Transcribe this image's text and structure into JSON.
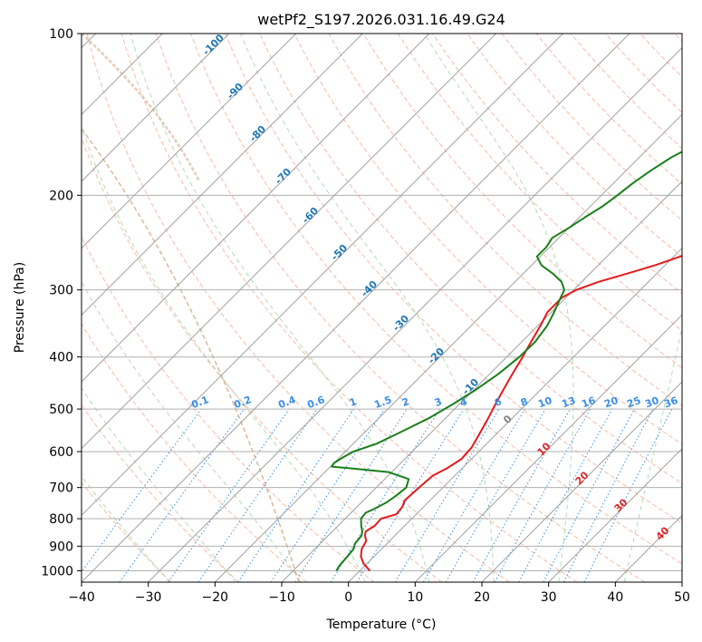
{
  "chart_data": {
    "type": "line",
    "title": "wetPf2_S197.2026.031.16.49.G24",
    "xlabel": "Temperature (°C)",
    "ylabel": "Pressure (hPa)",
    "xlim": [
      -40,
      50
    ],
    "ylim": [
      1050,
      100
    ],
    "x_ticks": [
      -40,
      -30,
      -20,
      -10,
      0,
      10,
      20,
      30,
      40,
      50
    ],
    "y_ticks": [
      100,
      200,
      300,
      400,
      500,
      600,
      700,
      800,
      900,
      1000
    ],
    "grid": true,
    "series": [
      {
        "name": "Temperature",
        "color": "#e41a1c",
        "points": [
          [
            1.5,
            1000
          ],
          [
            -0.5,
            970
          ],
          [
            -2.0,
            940
          ],
          [
            -3.0,
            910
          ],
          [
            -3.5,
            880
          ],
          [
            -4.5,
            860
          ],
          [
            -5.0,
            845
          ],
          [
            -4.5,
            825
          ],
          [
            -4.6,
            800
          ],
          [
            -3.0,
            785
          ],
          [
            -3.2,
            760
          ],
          [
            -3.8,
            740
          ],
          [
            -3.6,
            700
          ],
          [
            -3.3,
            665
          ],
          [
            -2.3,
            645
          ],
          [
            -1.5,
            620
          ],
          [
            -1.7,
            590
          ],
          [
            -2.6,
            555
          ],
          [
            -3.6,
            520
          ],
          [
            -4.6,
            490
          ],
          [
            -5.6,
            460
          ],
          [
            -6.6,
            430
          ],
          [
            -7.6,
            400
          ],
          [
            -8.6,
            375
          ],
          [
            -9.6,
            350
          ],
          [
            -10.6,
            330
          ],
          [
            -10.6,
            310
          ],
          [
            -9.6,
            300
          ],
          [
            -7.5,
            290
          ],
          [
            -4.5,
            280
          ],
          [
            -1.5,
            270
          ],
          [
            1.0,
            260
          ],
          [
            3.5,
            250
          ],
          [
            5.0,
            240
          ],
          [
            6.0,
            230
          ],
          [
            7.0,
            220
          ],
          [
            8.5,
            210
          ],
          [
            11.0,
            200
          ],
          [
            13.0,
            190
          ],
          [
            15.0,
            180
          ],
          [
            16.5,
            170
          ],
          [
            18.0,
            160
          ],
          [
            19.5,
            150
          ],
          [
            21.5,
            140
          ],
          [
            23.5,
            130
          ],
          [
            26.5,
            120
          ],
          [
            31.0,
            110
          ],
          [
            37.0,
            100
          ]
        ]
      },
      {
        "name": "Dewpoint",
        "color": "#1a7f1a",
        "points": [
          [
            -3.5,
            1000
          ],
          [
            -3.8,
            980
          ],
          [
            -4.0,
            940
          ],
          [
            -4.2,
            910
          ],
          [
            -4.8,
            890
          ],
          [
            -5.0,
            860
          ],
          [
            -5.5,
            845
          ],
          [
            -6.5,
            825
          ],
          [
            -7.6,
            800
          ],
          [
            -7.8,
            780
          ],
          [
            -7.0,
            765
          ],
          [
            -6.2,
            745
          ],
          [
            -5.8,
            725
          ],
          [
            -5.5,
            700
          ],
          [
            -6.4,
            675
          ],
          [
            -10.5,
            655
          ],
          [
            -16.5,
            645
          ],
          [
            -19.8,
            640
          ],
          [
            -20.0,
            630
          ],
          [
            -19.5,
            615
          ],
          [
            -18.8,
            600
          ],
          [
            -16.5,
            580
          ],
          [
            -14.5,
            550
          ],
          [
            -12.5,
            520
          ],
          [
            -11.0,
            490
          ],
          [
            -9.7,
            460
          ],
          [
            -8.7,
            430
          ],
          [
            -8.1,
            400
          ],
          [
            -8.0,
            375
          ],
          [
            -8.6,
            350
          ],
          [
            -9.6,
            330
          ],
          [
            -10.5,
            315
          ],
          [
            -11.4,
            300
          ],
          [
            -13.0,
            290
          ],
          [
            -15.5,
            280
          ],
          [
            -18.5,
            270
          ],
          [
            -20.5,
            260
          ],
          [
            -20.5,
            250
          ],
          [
            -21.0,
            240
          ],
          [
            -20.0,
            230
          ],
          [
            -19.2,
            220
          ],
          [
            -18.2,
            210
          ],
          [
            -17.6,
            200
          ],
          [
            -17.1,
            190
          ],
          [
            -16.3,
            180
          ],
          [
            -15.2,
            170
          ],
          [
            -13.2,
            160
          ],
          [
            -10.8,
            150
          ],
          [
            -8.2,
            140
          ],
          [
            -5.8,
            130
          ],
          [
            -3.5,
            120
          ],
          [
            -1.5,
            110
          ],
          [
            0.5,
            100
          ]
        ]
      }
    ],
    "dry_adiabat_labels": [
      "-100",
      "-90",
      "-80",
      "-70",
      "-60",
      "-50",
      "-40",
      "-30",
      "-20",
      "-10"
    ],
    "dry_adiabat_label_color": "#1f77b4",
    "mixing_ratio_labels": [
      "0.1",
      "0.2",
      "0.4",
      "0.6",
      "1",
      "1.5",
      "2",
      "3",
      "4",
      "6",
      "8",
      "10",
      "13",
      "16",
      "20",
      "25",
      "30",
      "36"
    ],
    "mixing_ratio_label_color": "#3a8ee6",
    "moist_adiabat_labels": [
      "0",
      "10",
      "20",
      "30",
      "40"
    ],
    "moist_adiabat_label_colors": [
      "#808080",
      "#d62728",
      "#d62728",
      "#d62728",
      "#d62728"
    ]
  }
}
